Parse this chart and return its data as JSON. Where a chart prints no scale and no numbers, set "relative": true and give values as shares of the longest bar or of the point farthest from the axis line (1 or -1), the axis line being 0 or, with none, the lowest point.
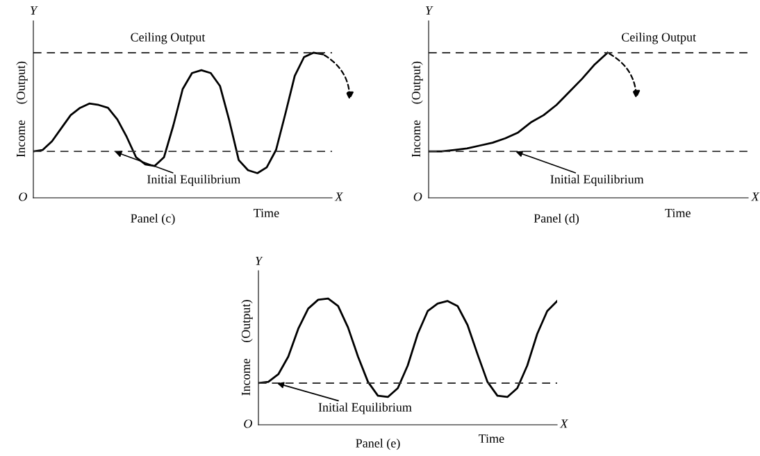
{
  "chart_data": [
    {
      "type": "line",
      "relative": true,
      "title": "Panel (c)",
      "xlabel": "Time",
      "ylabel": "Income     (Output)",
      "annotations": [
        "Y",
        "O",
        "X"
      ],
      "marker": "none",
      "line_style": "solid",
      "categories": [
        null,
        null,
        null,
        null,
        null,
        null,
        null,
        null,
        null,
        null,
        null,
        null,
        null,
        null,
        null,
        null,
        null,
        null,
        null,
        null,
        null,
        null,
        null,
        null,
        null,
        null,
        null,
        null,
        null,
        null,
        null,
        null,
        null
      ],
      "series": [
        {
          "color": "#000000",
          "values": [
            0.32,
            0.33,
            0.39,
            0.48,
            0.57,
            0.62,
            0.65,
            0.64,
            0.62,
            0.54,
            0.42,
            0.28,
            0.23,
            0.22,
            0.28,
            0.5,
            0.75,
            0.86,
            0.88,
            0.86,
            0.77,
            0.53,
            0.26,
            0.19,
            0.17,
            0.21,
            0.33,
            0.58,
            0.84,
            0.97,
            1.0,
            0.99,
            null
          ]
        }
      ],
      "ref_lines": [
        {
          "axis": "y",
          "value": 1.0,
          "label": "Ceiling Output",
          "color": "#333333",
          "line_style": "dashed"
        },
        {
          "axis": "y",
          "value": 0.32,
          "label": "Initial Equilibrium",
          "color": "#333333",
          "line_style": "dashed"
        }
      ]
    },
    {
      "type": "line",
      "relative": true,
      "title": "Panel (d)",
      "xlabel": "Time",
      "ylabel": "Income     (Output)",
      "annotations": [
        "Y",
        "O",
        "X"
      ],
      "marker": "none",
      "line_style": "solid",
      "categories": [
        null,
        null,
        null,
        null,
        null,
        null,
        null,
        null,
        null,
        null,
        null,
        null,
        null,
        null,
        null,
        null,
        null,
        null,
        null,
        null,
        null,
        null,
        null,
        null,
        null,
        null
      ],
      "series": [
        {
          "color": "#000000",
          "values": [
            0.32,
            0.32,
            0.33,
            0.34,
            0.36,
            0.38,
            0.41,
            0.45,
            0.52,
            0.57,
            0.64,
            0.73,
            0.82,
            0.92,
            1.0,
            null,
            null,
            null,
            null,
            null,
            null,
            null,
            null,
            null,
            null,
            null
          ]
        }
      ],
      "ref_lines": [
        {
          "axis": "y",
          "value": 1.0,
          "label": "Ceiling Output",
          "color": "#333333",
          "line_style": "dashed"
        },
        {
          "axis": "y",
          "value": 0.32,
          "label": "Initial Equilibrium",
          "color": "#333333",
          "line_style": "dashed"
        }
      ]
    },
    {
      "type": "line",
      "relative": true,
      "title": "Panel (e)",
      "xlabel": "Time",
      "ylabel": "Income     (Output)",
      "annotations": [
        "Y",
        "O",
        "X"
      ],
      "marker": "none",
      "line_style": "solid",
      "categories": [
        null,
        null,
        null,
        null,
        null,
        null,
        null,
        null,
        null,
        null,
        null,
        null,
        null,
        null,
        null,
        null,
        null,
        null,
        null,
        null,
        null,
        null,
        null,
        null,
        null,
        null,
        null,
        null,
        null,
        null,
        null
      ],
      "series": [
        {
          "color": "#000000",
          "values": [
            0.33,
            0.34,
            0.4,
            0.54,
            0.76,
            0.92,
            0.99,
            1.0,
            0.94,
            0.77,
            0.54,
            0.34,
            0.23,
            0.22,
            0.29,
            0.47,
            0.72,
            0.9,
            0.96,
            0.98,
            0.94,
            0.79,
            0.56,
            0.34,
            0.23,
            0.22,
            0.29,
            0.47,
            0.72,
            0.9,
            0.98
          ]
        }
      ],
      "ref_lines": [
        {
          "axis": "y",
          "value": 0.33,
          "label": "Initial Equilibrium",
          "color": "#333333",
          "line_style": "dashed"
        }
      ]
    }
  ]
}
